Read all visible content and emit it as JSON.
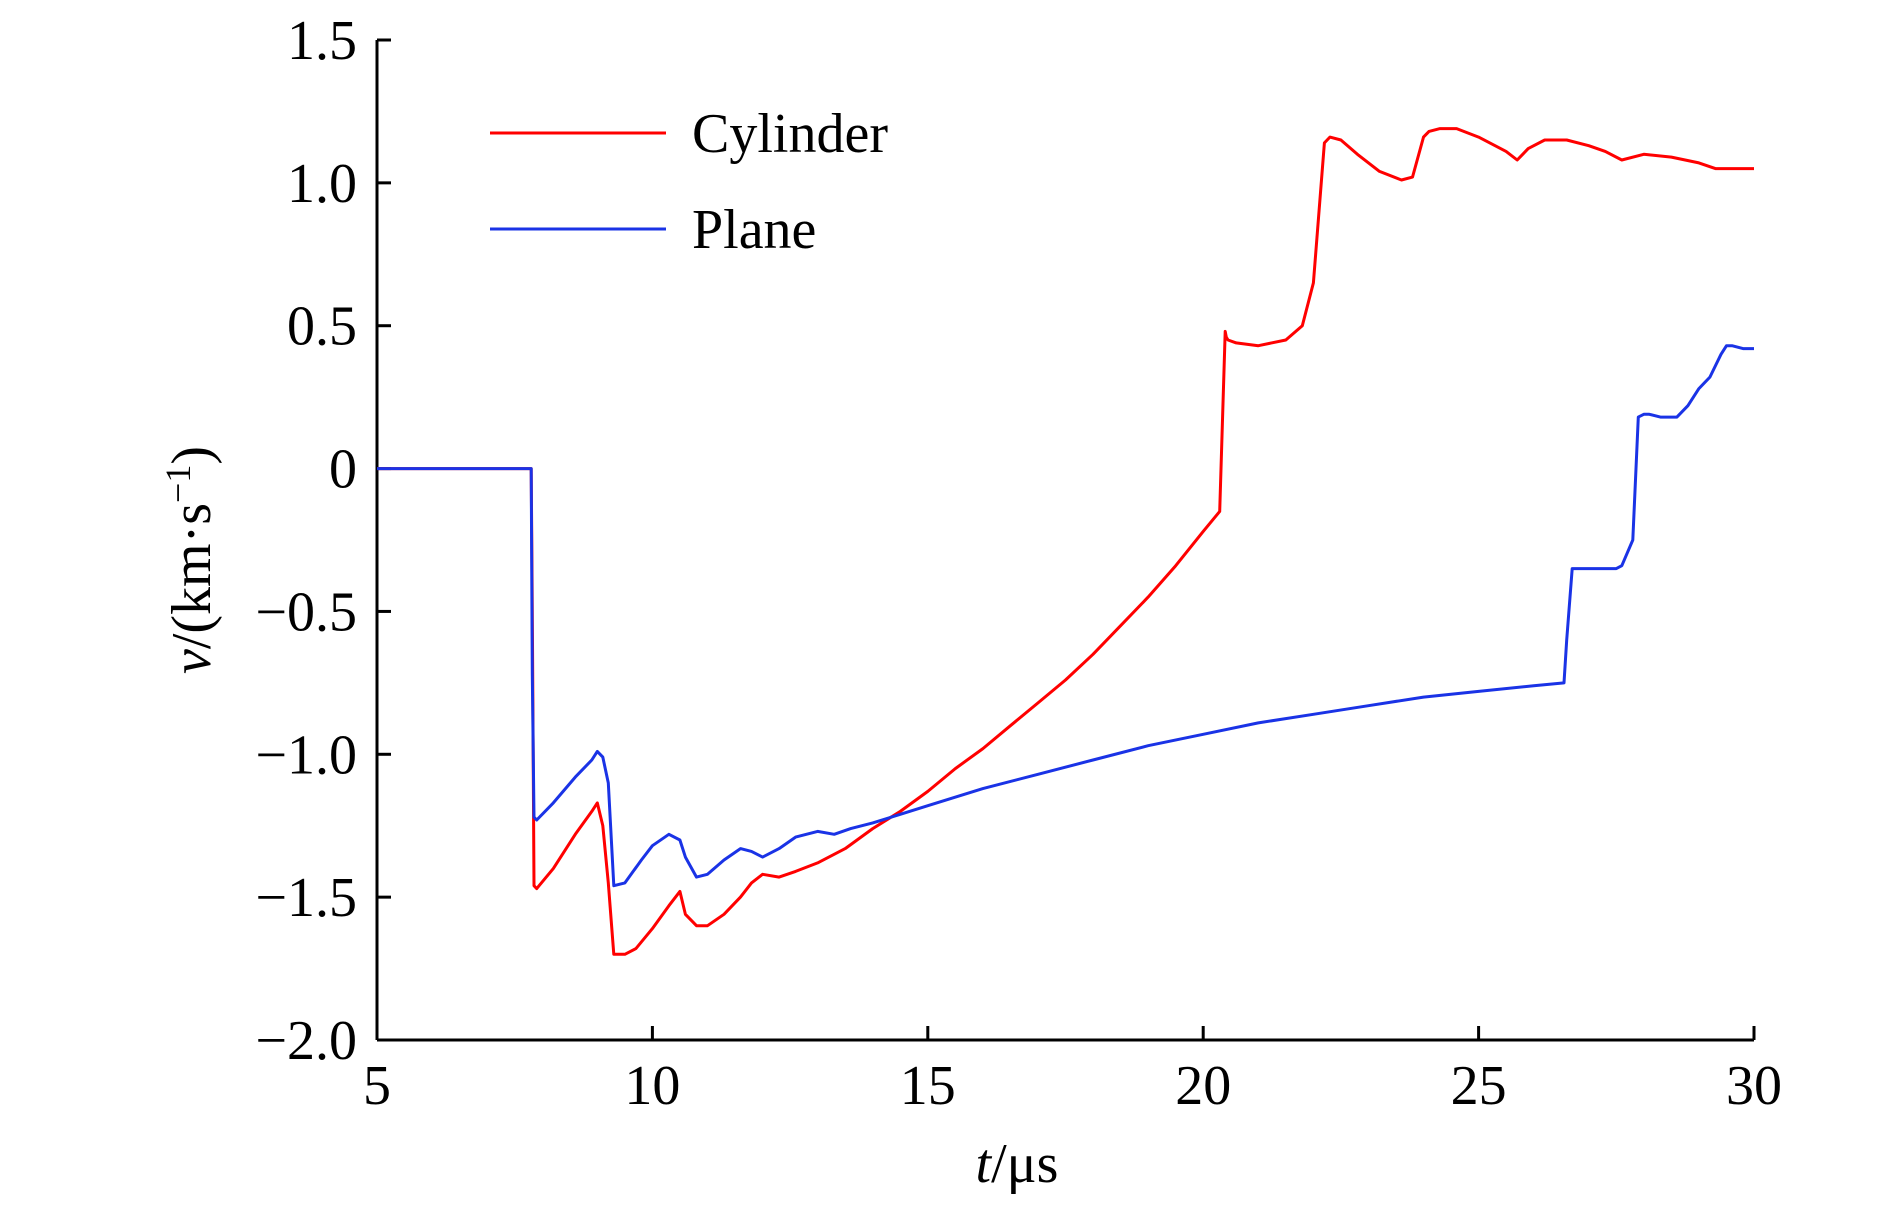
{
  "chart_data": {
    "type": "line",
    "title": "",
    "xlabel": {
      "var": "t",
      "unit": "/μs"
    },
    "ylabel": {
      "var": "v",
      "unit": "/(km·s",
      "sup": "−1",
      "close": ")"
    },
    "xlim": [
      5,
      30
    ],
    "ylim": [
      -2.0,
      1.5
    ],
    "xticks": [
      5,
      10,
      15,
      20,
      25,
      30
    ],
    "xtick_labels": [
      "5",
      "10",
      "15",
      "20",
      "25",
      "30"
    ],
    "yticks": [
      -2.0,
      -1.5,
      -1.0,
      -0.5,
      0,
      0.5,
      1.0,
      1.5
    ],
    "ytick_labels": [
      "−2.0",
      "−1.5",
      "−1.0",
      "−0.5",
      "0",
      "0.5",
      "1.0",
      "1.5"
    ],
    "grid": false,
    "legend_position": "top-left",
    "series": [
      {
        "name": "Cylinder",
        "color": "#ff0000",
        "x": [
          5,
          7.8,
          7.82,
          7.85,
          7.9,
          8.2,
          8.6,
          8.9,
          9.0,
          9.1,
          9.2,
          9.3,
          9.5,
          9.7,
          10.0,
          10.3,
          10.5,
          10.6,
          10.8,
          11.0,
          11.3,
          11.6,
          11.8,
          12.0,
          12.3,
          12.6,
          13.0,
          13.5,
          14.0,
          14.5,
          15.0,
          15.5,
          16.0,
          16.5,
          17.0,
          17.5,
          18.0,
          18.5,
          19.0,
          19.5,
          20.0,
          20.3,
          20.4,
          20.42,
          20.45,
          20.6,
          21.0,
          21.5,
          21.8,
          22.0,
          22.2,
          22.3,
          22.5,
          22.8,
          23.2,
          23.6,
          23.8,
          23.9,
          24.0,
          24.1,
          24.3,
          24.6,
          25.0,
          25.3,
          25.5,
          25.7,
          25.9,
          26.2,
          26.6,
          27.0,
          27.3,
          27.6,
          28.0,
          28.5,
          29.0,
          29.3,
          29.6,
          30.0
        ],
        "y": [
          0,
          0,
          -0.5,
          -1.46,
          -1.47,
          -1.4,
          -1.28,
          -1.2,
          -1.17,
          -1.25,
          -1.45,
          -1.7,
          -1.7,
          -1.68,
          -1.61,
          -1.53,
          -1.48,
          -1.56,
          -1.6,
          -1.6,
          -1.56,
          -1.5,
          -1.45,
          -1.42,
          -1.43,
          -1.41,
          -1.38,
          -1.33,
          -1.26,
          -1.2,
          -1.13,
          -1.05,
          -0.98,
          -0.9,
          -0.82,
          -0.74,
          -0.65,
          -0.55,
          -0.45,
          -0.34,
          -0.22,
          -0.15,
          0.48,
          0.46,
          0.45,
          0.44,
          0.43,
          0.45,
          0.5,
          0.65,
          1.14,
          1.16,
          1.15,
          1.1,
          1.04,
          1.01,
          1.02,
          1.09,
          1.16,
          1.18,
          1.19,
          1.19,
          1.16,
          1.13,
          1.11,
          1.08,
          1.12,
          1.15,
          1.15,
          1.13,
          1.11,
          1.08,
          1.1,
          1.09,
          1.07,
          1.05,
          1.05,
          1.05
        ]
      },
      {
        "name": "Plane",
        "color": "#1a33e6",
        "x": [
          5,
          7.8,
          7.82,
          7.85,
          7.9,
          8.2,
          8.6,
          8.9,
          9.0,
          9.1,
          9.2,
          9.3,
          9.5,
          9.8,
          10.0,
          10.3,
          10.5,
          10.6,
          10.8,
          11.0,
          11.3,
          11.6,
          11.8,
          12.0,
          12.3,
          12.6,
          13.0,
          13.3,
          13.6,
          14.0,
          14.5,
          15.0,
          16.0,
          17.0,
          18.0,
          19.0,
          20.0,
          21.0,
          22.0,
          23.0,
          24.0,
          25.0,
          26.0,
          26.55,
          26.6,
          26.7,
          27.0,
          27.5,
          27.6,
          27.8,
          27.9,
          28.0,
          28.1,
          28.3,
          28.6,
          28.8,
          29.0,
          29.2,
          29.4,
          29.5,
          29.6,
          29.8,
          30.0
        ],
        "y": [
          0,
          0,
          -0.72,
          -1.22,
          -1.23,
          -1.17,
          -1.08,
          -1.02,
          -0.99,
          -1.01,
          -1.1,
          -1.46,
          -1.45,
          -1.37,
          -1.32,
          -1.28,
          -1.3,
          -1.36,
          -1.43,
          -1.42,
          -1.37,
          -1.33,
          -1.34,
          -1.36,
          -1.33,
          -1.29,
          -1.27,
          -1.28,
          -1.26,
          -1.24,
          -1.21,
          -1.18,
          -1.12,
          -1.07,
          -1.02,
          -0.97,
          -0.93,
          -0.89,
          -0.86,
          -0.83,
          -0.8,
          -0.78,
          -0.76,
          -0.75,
          -0.6,
          -0.35,
          -0.35,
          -0.35,
          -0.34,
          -0.25,
          0.18,
          0.19,
          0.19,
          0.18,
          0.18,
          0.22,
          0.28,
          0.32,
          0.4,
          0.43,
          0.43,
          0.42,
          0.42
        ]
      }
    ]
  }
}
